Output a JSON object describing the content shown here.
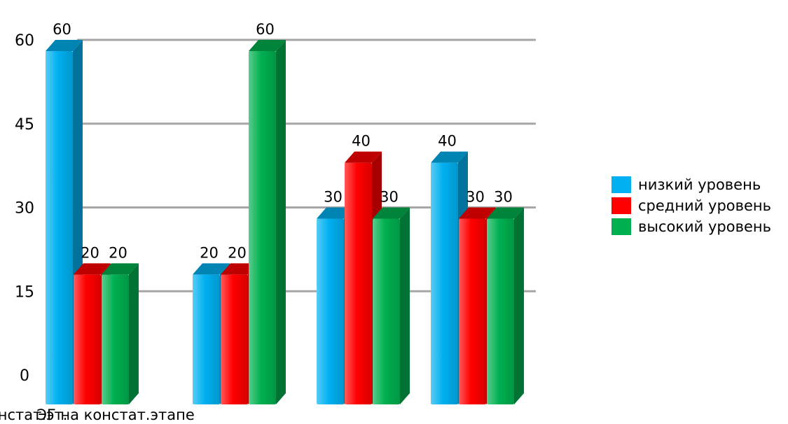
{
  "chart_data": {
    "type": "bar",
    "categories": [
      "ЭГ на констат.этапе",
      "",
      "КГ на констат.эт.",
      ""
    ],
    "series": [
      {
        "name": "низкий уровень",
        "color": "#00b0f0",
        "values": [
          60,
          20,
          30,
          40
        ]
      },
      {
        "name": "средний уровень",
        "color": "#ff0000",
        "values": [
          20,
          20,
          40,
          30
        ]
      },
      {
        "name": "высокий уровень",
        "color": "#00b050",
        "values": [
          20,
          60,
          30,
          30
        ]
      }
    ],
    "data_labels": [
      [
        "60",
        "20",
        "30",
        "40"
      ],
      [
        "20",
        "20",
        "40",
        "30"
      ],
      [
        "20",
        "60",
        "30",
        "30"
      ]
    ],
    "yticks": [
      "0",
      "15",
      "30",
      "45",
      "60"
    ],
    "ylim": [
      0,
      60
    ],
    "grid": true,
    "legend_position": "right",
    "style": "3d-bar"
  }
}
